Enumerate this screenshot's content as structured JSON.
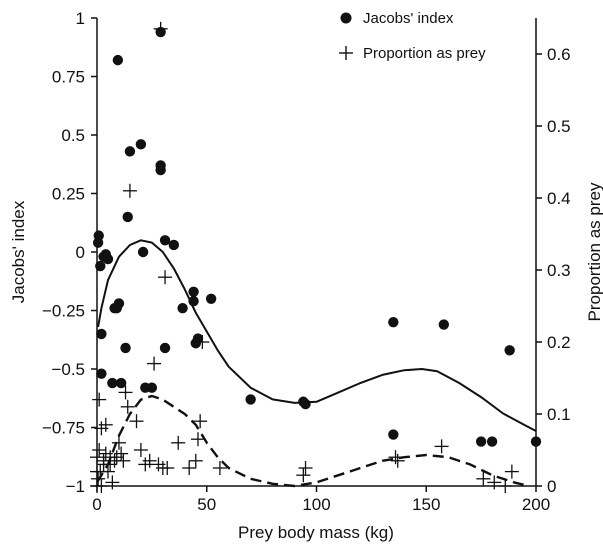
{
  "chart_data": {
    "type": "scatter",
    "xlabel": "Prey body mass (kg)",
    "ylabel_left": "Jacobs' index",
    "ylabel_right": "Proportion as prey",
    "xlim": [
      0,
      200
    ],
    "ylim_left": [
      -1,
      1
    ],
    "ylim_right": [
      0,
      0.65
    ],
    "x_ticks": [
      "0",
      "50",
      "100",
      "150",
      "200"
    ],
    "x_tick_values": [
      0,
      50,
      100,
      150,
      200
    ],
    "y_left_ticks": [
      "−1",
      "−0.75",
      "−0.5",
      "−0.25",
      "0",
      "0.25",
      "0.5",
      "0.75",
      "1"
    ],
    "y_left_tick_values": [
      -1,
      -0.75,
      -0.5,
      -0.25,
      0,
      0.25,
      0.5,
      0.75,
      1
    ],
    "y_right_ticks": [
      "0",
      "0.1",
      "0.2",
      "0.3",
      "0.4",
      "0.5",
      "0.6"
    ],
    "y_right_tick_values": [
      0,
      0.1,
      0.2,
      0.3,
      0.4,
      0.5,
      0.6
    ],
    "legend": {
      "placement": "top-right",
      "entries": [
        "Jacobs' index",
        "Proportion as prey"
      ]
    },
    "grid": false,
    "series": [
      {
        "name": "Jacobs' index",
        "marker": "filled-circle",
        "axis": "left",
        "points": [
          [
            0.5,
            0.04
          ],
          [
            0.8,
            0.07
          ],
          [
            1.5,
            -0.06
          ],
          [
            2,
            -0.35
          ],
          [
            2,
            -0.52
          ],
          [
            3,
            -0.02
          ],
          [
            4,
            -0.01
          ],
          [
            5,
            -0.03
          ],
          [
            7,
            -0.56
          ],
          [
            8,
            -0.24
          ],
          [
            9,
            -0.24
          ],
          [
            10,
            -0.22
          ],
          [
            9.5,
            0.82
          ],
          [
            11,
            -0.56
          ],
          [
            13,
            -0.41
          ],
          [
            14,
            0.15
          ],
          [
            15,
            0.43
          ],
          [
            20,
            0.46
          ],
          [
            21,
            0.0
          ],
          [
            22,
            -0.58
          ],
          [
            25,
            -0.58
          ],
          [
            29,
            0.94
          ],
          [
            29,
            0.35
          ],
          [
            29,
            0.37
          ],
          [
            31,
            0.05
          ],
          [
            31,
            -0.41
          ],
          [
            35,
            0.03
          ],
          [
            39,
            -0.24
          ],
          [
            44,
            -0.17
          ],
          [
            44,
            -0.21
          ],
          [
            46,
            -0.37
          ],
          [
            45,
            -0.39
          ],
          [
            52,
            -0.2
          ],
          [
            70,
            -0.63
          ],
          [
            94,
            -0.64
          ],
          [
            95,
            -0.65
          ],
          [
            135,
            -0.3
          ],
          [
            135,
            -0.78
          ],
          [
            158,
            -0.31
          ],
          [
            175,
            -0.81
          ],
          [
            180,
            -0.81
          ],
          [
            188,
            -0.42
          ],
          [
            200,
            -0.81
          ]
        ]
      },
      {
        "name": "Proportion as prey",
        "marker": "plus",
        "axis": "right",
        "points": [
          [
            0,
            0.0
          ],
          [
            0,
            0.02
          ],
          [
            0,
            0.04
          ],
          [
            0.5,
            0.01
          ],
          [
            1,
            0.12
          ],
          [
            1,
            0.05
          ],
          [
            1.5,
            0.02
          ],
          [
            2,
            0.08
          ],
          [
            2,
            0.0
          ],
          [
            3,
            0.03
          ],
          [
            3,
            0.035
          ],
          [
            4,
            0.085
          ],
          [
            4,
            0.045
          ],
          [
            5,
            0.02
          ],
          [
            6,
            0.04
          ],
          [
            6,
            0.03
          ],
          [
            7,
            0.005
          ],
          [
            8,
            0.035
          ],
          [
            9,
            0.04
          ],
          [
            10,
            0.06
          ],
          [
            11,
            0.045
          ],
          [
            12,
            0.035
          ],
          [
            13,
            0.13
          ],
          [
            14,
            0.11
          ],
          [
            15,
            0.41
          ],
          [
            18,
            0.09
          ],
          [
            20,
            0.05
          ],
          [
            22,
            0.03
          ],
          [
            24,
            0.035
          ],
          [
            26,
            0.17
          ],
          [
            28,
            0.03
          ],
          [
            29,
            0.635
          ],
          [
            30,
            0.025
          ],
          [
            31,
            0.29
          ],
          [
            32,
            0.025
          ],
          [
            37,
            0.06
          ],
          [
            42,
            0.025
          ],
          [
            45,
            0.035
          ],
          [
            46,
            0.065
          ],
          [
            47,
            0.09
          ],
          [
            48,
            0.2
          ],
          [
            56,
            0.025
          ],
          [
            94,
            0.015
          ],
          [
            95,
            0.025
          ],
          [
            136,
            0.04
          ],
          [
            137,
            0.035
          ],
          [
            157,
            0.055
          ],
          [
            176,
            0.01
          ],
          [
            181,
            0.005
          ],
          [
            186,
            0.0
          ],
          [
            189,
            0.02
          ]
        ]
      }
    ],
    "fitted_curves": [
      {
        "style": "solid",
        "axis": "left",
        "points": [
          [
            0.5,
            -0.32
          ],
          [
            2,
            -0.24
          ],
          [
            5,
            -0.12
          ],
          [
            10,
            -0.02
          ],
          [
            15,
            0.03
          ],
          [
            20,
            0.05
          ],
          [
            25,
            0.04
          ],
          [
            30,
            0.0
          ],
          [
            35,
            -0.07
          ],
          [
            40,
            -0.16
          ],
          [
            45,
            -0.26
          ],
          [
            50,
            -0.34
          ],
          [
            55,
            -0.42
          ],
          [
            60,
            -0.49
          ],
          [
            70,
            -0.58
          ],
          [
            80,
            -0.63
          ],
          [
            90,
            -0.645
          ],
          [
            100,
            -0.64
          ],
          [
            110,
            -0.6
          ],
          [
            120,
            -0.56
          ],
          [
            130,
            -0.525
          ],
          [
            140,
            -0.505
          ],
          [
            148,
            -0.5
          ],
          [
            155,
            -0.51
          ],
          [
            165,
            -0.56
          ],
          [
            175,
            -0.62
          ],
          [
            185,
            -0.69
          ],
          [
            195,
            -0.74
          ],
          [
            200,
            -0.765
          ]
        ]
      },
      {
        "style": "dashed",
        "axis": "right",
        "points": [
          [
            0,
            0.005
          ],
          [
            5,
            0.03
          ],
          [
            10,
            0.07
          ],
          [
            15,
            0.1
          ],
          [
            20,
            0.12
          ],
          [
            25,
            0.125
          ],
          [
            30,
            0.12
          ],
          [
            35,
            0.11
          ],
          [
            40,
            0.1
          ],
          [
            45,
            0.085
          ],
          [
            50,
            0.06
          ],
          [
            55,
            0.04
          ],
          [
            60,
            0.025
          ],
          [
            70,
            0.01
          ],
          [
            80,
            0.003
          ],
          [
            90,
            0.0
          ],
          [
            100,
            0.005
          ],
          [
            110,
            0.015
          ],
          [
            120,
            0.025
          ],
          [
            130,
            0.035
          ],
          [
            140,
            0.04
          ],
          [
            150,
            0.043
          ],
          [
            160,
            0.04
          ],
          [
            170,
            0.03
          ],
          [
            180,
            0.015
          ],
          [
            190,
            0.005
          ],
          [
            197,
            0.0
          ]
        ]
      }
    ]
  }
}
